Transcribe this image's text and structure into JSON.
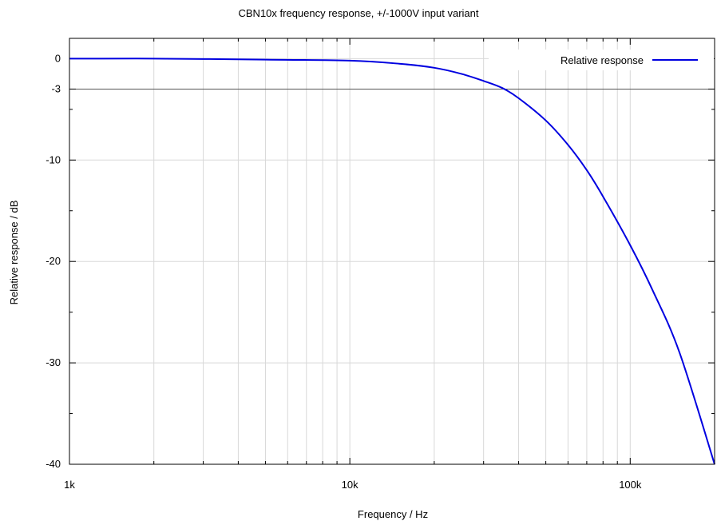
{
  "chart_data": {
    "type": "line",
    "title": "CBN10x frequency response, +/-1000V input variant",
    "xlabel": "Frequency / Hz",
    "ylabel": "Relative response / dB",
    "xscale": "log",
    "xlim": [
      1000,
      200000
    ],
    "ylim": [
      -40,
      2
    ],
    "x_ticks": [
      {
        "value": 1000,
        "label": "1k"
      },
      {
        "value": 10000,
        "label": "10k"
      },
      {
        "value": 100000,
        "label": "100k"
      }
    ],
    "y_ticks": [
      {
        "value": 0,
        "label": "0"
      },
      {
        "value": -3,
        "label": "-3"
      },
      {
        "value": -10,
        "label": "-10"
      },
      {
        "value": -20,
        "label": "-20"
      },
      {
        "value": -30,
        "label": "-30"
      },
      {
        "value": -40,
        "label": "-40"
      }
    ],
    "grid": true,
    "reference_line": {
      "y": -3
    },
    "legend": {
      "position": "top-right"
    },
    "series": [
      {
        "name": "Relative response",
        "color": "#0000e0",
        "x": [
          1000,
          2000,
          5000,
          10000,
          15000,
          20000,
          25000,
          30000,
          35000,
          40000,
          50000,
          60000,
          70000,
          80000,
          100000,
          120000,
          150000,
          200000
        ],
        "y": [
          0,
          0,
          -0.1,
          -0.2,
          -0.5,
          -0.9,
          -1.5,
          -2.2,
          -2.9,
          -3.9,
          -6.1,
          -8.5,
          -11.0,
          -13.6,
          -18.4,
          -22.8,
          -29.0,
          -40.0
        ]
      }
    ]
  }
}
